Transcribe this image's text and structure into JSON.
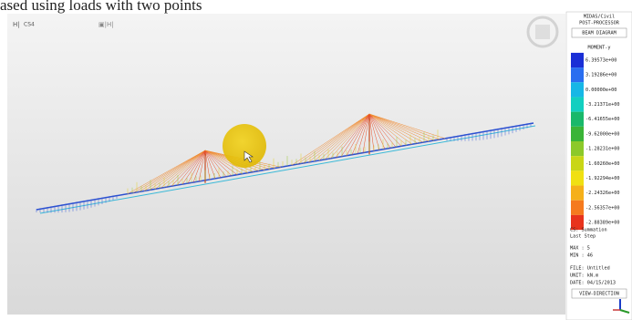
{
  "caption": "ased using loads with two points",
  "viewport": {
    "toolbar_label": "CS4"
  },
  "panel": {
    "program": "MIDAS/Civil",
    "mode": "POST-PROCESSOR",
    "diagram": "BEAM DIAGRAM",
    "component": "MOMENT-y",
    "legend": [
      "6.39573e+00",
      "3.19286e+00",
      "0.00000e+00",
      "-3.21371e+00",
      "-6.41655e+00",
      "-9.62000e+00",
      "-1.28231e+00",
      "-1.60260e+00",
      "-1.92294e+00",
      "-2.24326e+00",
      "-2.56357e+00",
      "-2.88389e+00"
    ],
    "info": [
      "CS: Summation",
      "Last Step",
      "MAX : 5",
      "MIN : 46",
      "FILE: Untitled",
      "UNIT: kN.m",
      "DATE: 04/15/2013"
    ],
    "view_direction": "VIEW-DIRECTION"
  }
}
